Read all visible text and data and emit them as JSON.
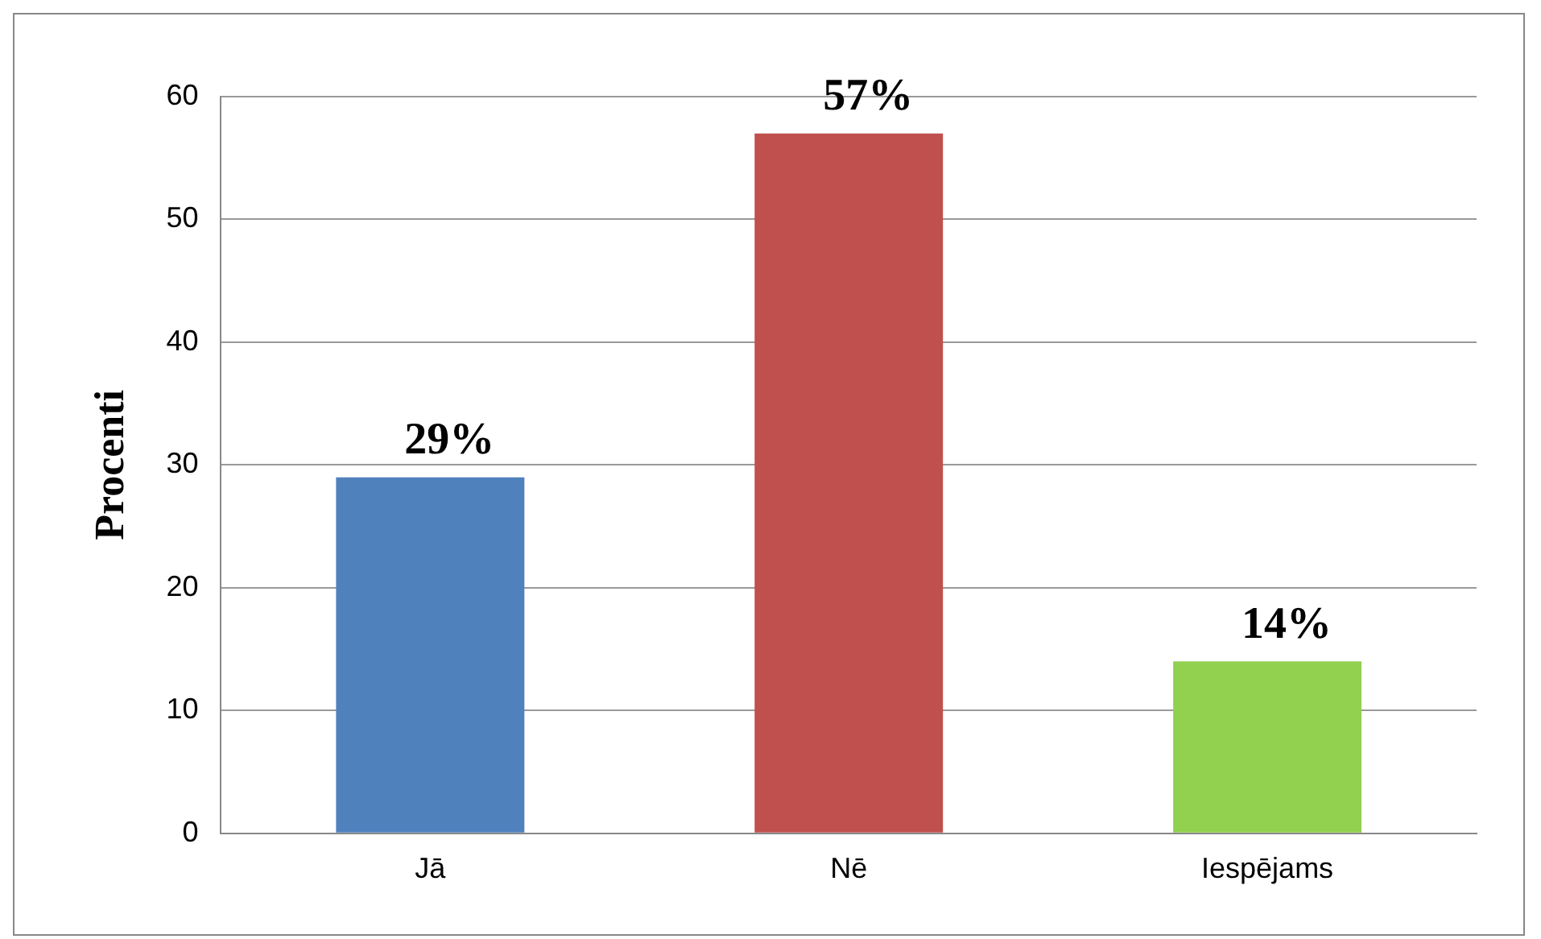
{
  "chart_data": {
    "type": "bar",
    "ylabel": "Procenti",
    "categories": [
      "Jā",
      "Nē",
      "Iespējams"
    ],
    "values": [
      29,
      57,
      14
    ],
    "colors": [
      "#4f81bd",
      "#c0504d",
      "#92d050"
    ],
    "value_labels": [
      "29%",
      "57%",
      "14%"
    ],
    "ylim": [
      0,
      60
    ],
    "yticks": [
      0,
      10,
      20,
      30,
      40,
      50,
      60
    ],
    "grid": "y",
    "legend": false
  }
}
